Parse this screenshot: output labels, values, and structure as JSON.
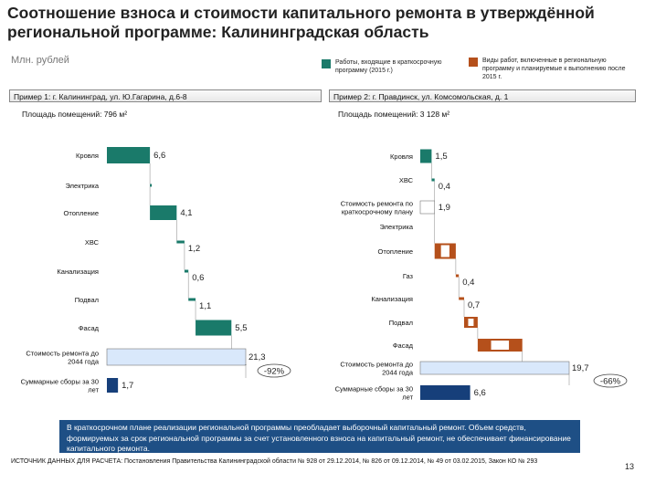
{
  "title": "Соотношение взноса и стоимости капитального ремонта в утверждённой региональной программе: Калининградская область",
  "unit_label": "Млн. рублей",
  "colors": {
    "short": "#1a7a6a",
    "other": "#b5501b",
    "total": "#d9e8fb",
    "fee": "#163f7a",
    "bridge": "#1a3f7a"
  },
  "legend": [
    {
      "label": "Работы, входящие в краткосрочную программу (2015 г.)",
      "color": "#1a7a6a"
    },
    {
      "label": "Виды работ, включенные в региональную программу и планируемые к выполнению после 2015 г.",
      "color": "#b5501b"
    }
  ],
  "left": {
    "header": "Пример 1: г. Калининград, ул. Ю.Гагарина, д.6-8",
    "area": "Площадь помещений: 796 м²"
  },
  "right": {
    "header": "Пример 2: г. Правдинск, ул. Комсомольская, д. 1",
    "area": "Площадь помещений: 3 128 м²"
  },
  "chart_data": [
    {
      "type": "bar",
      "subtype": "waterfall",
      "title": "Пример 1: г. Калининград, ул. Ю.Гагарина, д.6-8",
      "categories": [
        "Кровля",
        "Электрика",
        "Отопление",
        "ХВС",
        "Канализация",
        "Подвал",
        "Фасад",
        "Стоимость ремонта до 2044 года",
        "Суммарные сборы за 30 лет"
      ],
      "values": [
        6.6,
        0,
        4.1,
        1.2,
        0.6,
        1.1,
        5.5,
        21.3,
        1.7
      ],
      "labels": [
        "6,6",
        "",
        "4,1",
        "1,2",
        "0,6",
        "1,1",
        "5,5",
        "21,3",
        "1,7"
      ],
      "kinds": [
        "short",
        "short",
        "short",
        "short",
        "short",
        "short",
        "short",
        "total",
        "fee"
      ],
      "difference_label": "-92%",
      "xlim": [
        0,
        21.3
      ]
    },
    {
      "type": "bar",
      "subtype": "waterfall",
      "title": "Пример 2: г. Правдинск, ул. Комсомольская, д. 1",
      "categories": [
        "Кровля",
        "ХВС",
        "Стоимость ремонта по краткосрочному плану",
        "Электрика",
        "Отопление",
        "Газ",
        "Канализация",
        "Подвал",
        "Фасад",
        "Стоимость ремонта до 2044 года",
        "Суммарные сборы за 30 лет"
      ],
      "values": [
        1.5,
        0.4,
        1.9,
        0,
        2.8,
        0.4,
        0.7,
        1.8,
        5.9,
        19.7,
        6.6
      ],
      "labels": [
        "1,5",
        "0,4",
        "1,9",
        "",
        "",
        "0,4",
        "0,7",
        "",
        "",
        "19,7",
        "6,6"
      ],
      "kinds": [
        "short",
        "short",
        "subtotal",
        "other",
        "other",
        "other",
        "other",
        "other",
        "other",
        "total",
        "fee"
      ],
      "difference_label": "-66%",
      "xlim": [
        0,
        19.7
      ]
    }
  ],
  "conclusion": "В краткосрочном плане реализации региональной программы преобладает выборочный капитальный ремонт. Объем средств, формируемых за срок региональной программы за счет установленного взноса на капитальный ремонт, не обеспечивает финансирование капитального ремонта.",
  "source": "ИСТОЧНИК ДАННЫХ ДЛЯ РАСЧЕТА: Постановления Правительства Калининградской области № 928 от 29.12.2014, № 826 от 09.12.2014, № 49 от 03.02.2015, Закон КО № 293",
  "page_number": "13"
}
